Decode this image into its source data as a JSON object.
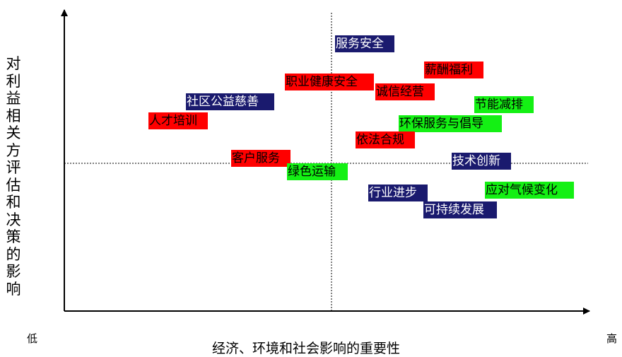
{
  "y_axis_label": "对利益相关方评估和决策的影响",
  "x_axis_label": "经济、环境和社会影响的重要性",
  "x_low_label": "低",
  "x_high_label": "高",
  "colors": {
    "red": "#ff0000",
    "navy": "#1a1a6e",
    "green": "#14f014"
  },
  "topics": [
    {
      "label": "服务安全",
      "color": "navy"
    },
    {
      "label": "薪酬福利",
      "color": "red"
    },
    {
      "label": "职业健康安全",
      "color": "red"
    },
    {
      "label": "诚信经营",
      "color": "red"
    },
    {
      "label": "节能减排",
      "color": "green"
    },
    {
      "label": "社区公益慈善",
      "color": "navy"
    },
    {
      "label": "人才培训",
      "color": "red"
    },
    {
      "label": "环保服务与倡导",
      "color": "green"
    },
    {
      "label": "依法合规",
      "color": "red"
    },
    {
      "label": "客户服务",
      "color": "red"
    },
    {
      "label": "技术创新",
      "color": "navy"
    },
    {
      "label": "绿色运输",
      "color": "green"
    },
    {
      "label": "行业进步",
      "color": "navy"
    },
    {
      "label": "应对气候变化",
      "color": "green"
    },
    {
      "label": "可持续发展",
      "color": "navy"
    }
  ]
}
